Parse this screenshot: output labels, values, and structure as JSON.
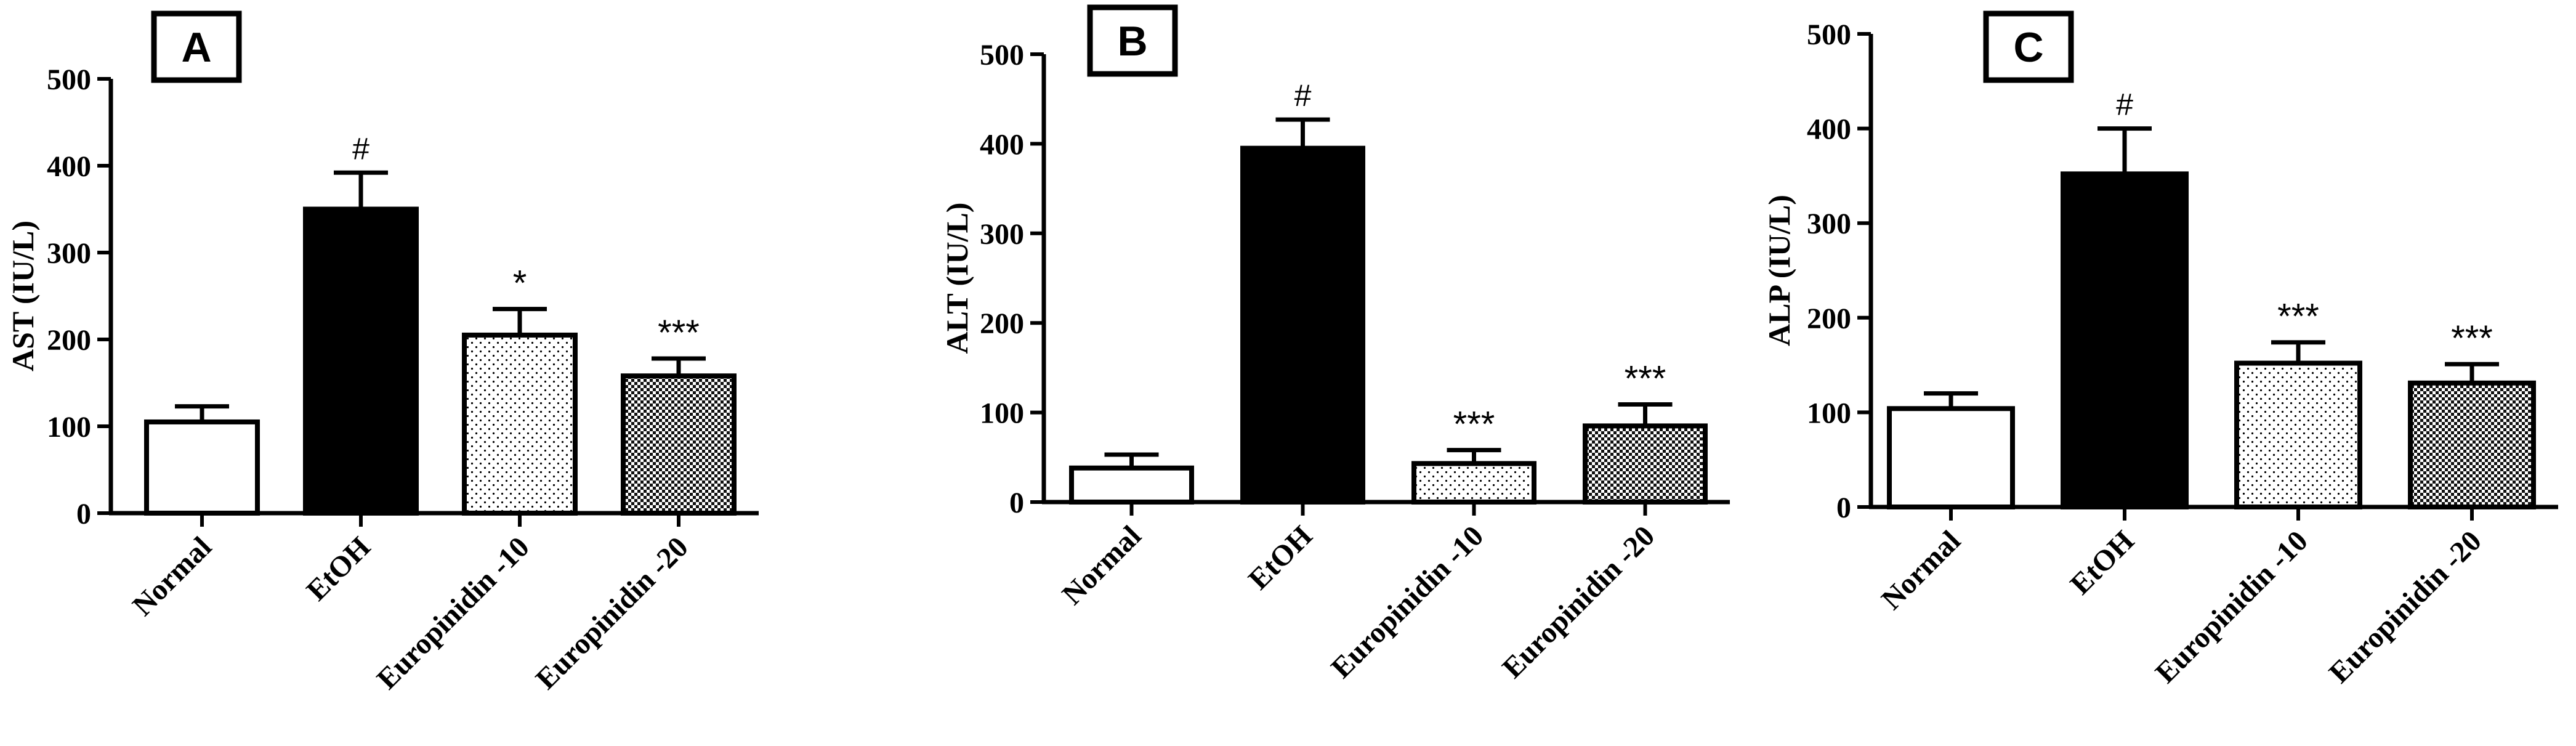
{
  "chart_data": [
    {
      "type": "bar",
      "panel_label": "A",
      "ylabel": "AST (IU/L)",
      "categories": [
        "Normal",
        "EtOH",
        "Europinidin -10",
        "Europinidin -20"
      ],
      "values": [
        105,
        350,
        205,
        158
      ],
      "errors": [
        18,
        42,
        30,
        20
      ],
      "significance": [
        "",
        "#",
        "*",
        "***"
      ],
      "ylim": [
        0,
        500
      ],
      "yticks": [
        "0",
        "100",
        "200",
        "300",
        "400",
        "500"
      ]
    },
    {
      "type": "bar",
      "panel_label": "B",
      "ylabel": "ALT (IU/L)",
      "categories": [
        "Normal",
        "EtOH",
        "Europinidin -10",
        "Europinidin -20"
      ],
      "values": [
        38,
        395,
        43,
        85
      ],
      "errors": [
        15,
        32,
        15,
        24
      ],
      "significance": [
        "",
        "#",
        "***",
        "***"
      ],
      "ylim": [
        0,
        500
      ],
      "yticks": [
        "0",
        "100",
        "200",
        "300",
        "400",
        "500"
      ]
    },
    {
      "type": "bar",
      "panel_label": "C",
      "ylabel": "ALP (IU/L)",
      "categories": [
        "Normal",
        "EtOH",
        "Europinidin -10",
        "Europinidin -20"
      ],
      "values": [
        104,
        352,
        152,
        131
      ],
      "errors": [
        16,
        48,
        22,
        20
      ],
      "significance": [
        "",
        "#",
        "***",
        "***"
      ],
      "ylim": [
        0,
        500
      ],
      "yticks": [
        "0",
        "100",
        "200",
        "300",
        "400",
        "500"
      ]
    }
  ],
  "bar_styles": [
    "open",
    "solid",
    "dotted",
    "checkered"
  ],
  "colors": {
    "bar_fill_solid": "#000000",
    "bar_stroke": "#000000",
    "background": "#ffffff"
  }
}
